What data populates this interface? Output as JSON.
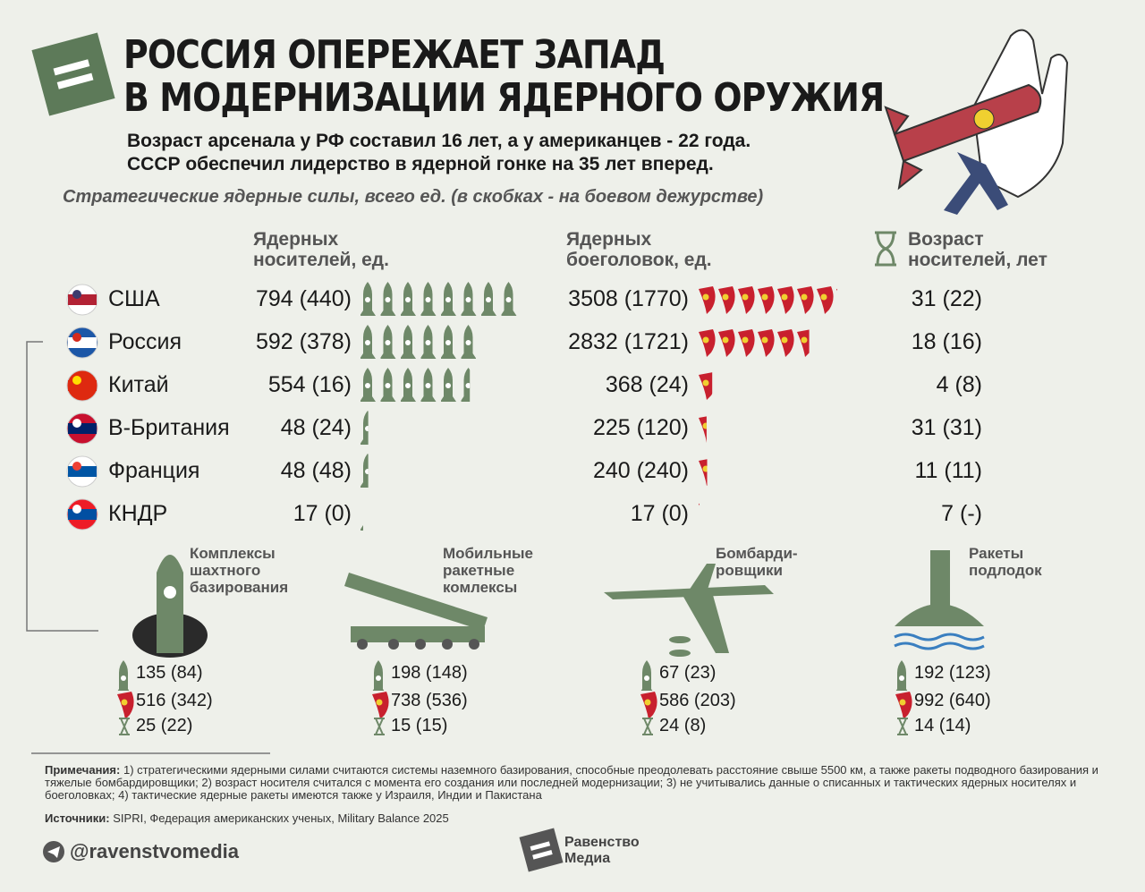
{
  "header": {
    "title": [
      "РОССИЯ ОПЕРЕЖАЕТ ЗАПАД",
      "В МОДЕРНИЗАЦИИ ЯДЕРНОГО ОРУЖИЯ"
    ],
    "subtitle": [
      "Возраст арсенала у РФ составил 16 лет, а у американцев - 22 года.",
      "СССР обеспечил лидерство в ядерной гонке на 35 лет вперед."
    ],
    "section_label": "Стратегические ядерные силы, всего ед. (в скобках - на боевом дежурстве)"
  },
  "table": {
    "columns": [
      [
        "Ядерных",
        "носителей, ед."
      ],
      [
        "Ядерных",
        "боеголовок, ед."
      ],
      [
        "Возраст",
        "носителей, лет"
      ]
    ],
    "rows": [
      {
        "country": "США",
        "carriers": "794 (440)",
        "warheads": "3508 (1770)",
        "age": "31 (22)"
      },
      {
        "country": "Россия",
        "carriers": "592 (378)",
        "warheads": "2832 (1721)",
        "age": "18 (16)"
      },
      {
        "country": "Китай",
        "carriers": "554 (16)",
        "warheads": "368 (24)",
        "age": "4 (8)"
      },
      {
        "country": "В-Британия",
        "carriers": "48 (24)",
        "warheads": "225 (120)",
        "age": "31 (31)"
      },
      {
        "country": "Франция",
        "carriers": "48 (48)",
        "warheads": "240 (240)",
        "age": "11 (11)"
      },
      {
        "country": "КНДР",
        "carriers": "17 (0)",
        "warheads": "17 (0)",
        "age": "7 (-)"
      }
    ]
  },
  "categories": [
    {
      "label": [
        "Комплексы",
        "шахтного",
        "базирования"
      ],
      "carriers": "135 (84)",
      "warheads": "516 (342)",
      "age": "25 (22)"
    },
    {
      "label": [
        "Мобильные",
        "ракетные",
        "комлексы"
      ],
      "carriers": "198 (148)",
      "warheads": "738 (536)",
      "age": "15 (15)"
    },
    {
      "label": [
        "Бомбарди-",
        "ровщики"
      ],
      "carriers": "67 (23)",
      "warheads": "586 (203)",
      "age": "24 (8)"
    },
    {
      "label": [
        "Ракеты",
        "подлодок"
      ],
      "carriers": "192 (123)",
      "warheads": "992 (640)",
      "age": "14 (14)"
    }
  ],
  "notes": {
    "label": "Примечания:",
    "text": "1) стратегическими ядерными силами считаются системы наземного базирования, способные преодолевать расстояние свыше 5500 км, а также ракеты подводного базирования и тяжелые бомбардировщики; 2) возраст носителя считался с момента его создания или последней модернизации; 3) не учитывались данные о списанных и тактических ядерных носителях и боеголовках; 4) тактические ядерные ракеты имеются также у Израиля, Индии и Пакистана"
  },
  "sources": {
    "label": "Источники:",
    "text": "SIPRI, Федерация американских ученых, Military Balance 2025"
  },
  "footer": {
    "handle": "@ravenstvomedia",
    "brand": [
      "Равенство",
      "Медиа"
    ]
  }
}
